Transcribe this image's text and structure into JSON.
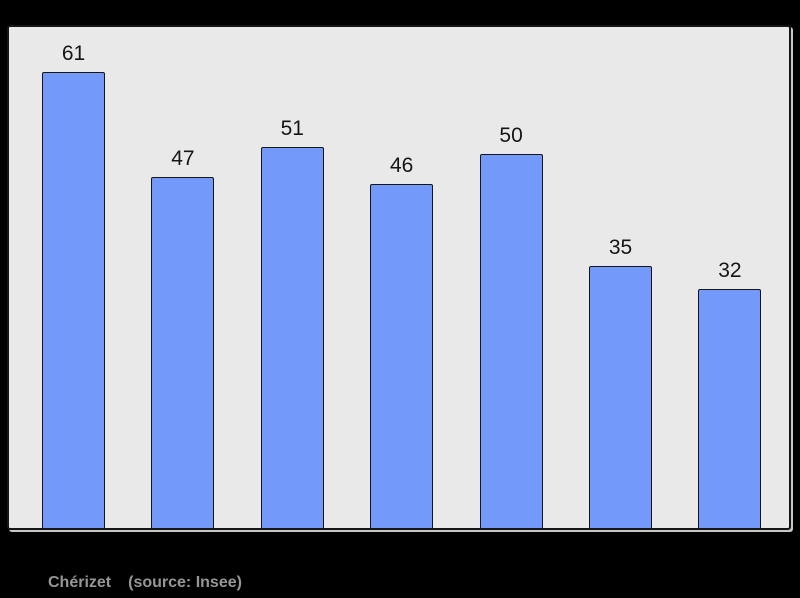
{
  "page": {
    "background_color": "#000000"
  },
  "chart": {
    "panel_background_color": "#e9e9e9",
    "panel_border_color": "#161616",
    "bar_fill_color": "#7399fa",
    "bar_border_color": "#161616",
    "value_label_color": "#161616"
  },
  "chart_data": {
    "type": "bar",
    "values": [
      61,
      47,
      51,
      46,
      50,
      35,
      32
    ],
    "data_labels": [
      "61",
      "47",
      "51",
      "46",
      "50",
      "35",
      "32"
    ],
    "title": "",
    "xlabel": "",
    "ylabel": "",
    "ylim": [
      0,
      67
    ],
    "grid": false,
    "legend": false,
    "bar_color": "#7399fa"
  },
  "caption": {
    "author": "Chérizet",
    "source": "(source: Insee)",
    "color": "#969696"
  }
}
